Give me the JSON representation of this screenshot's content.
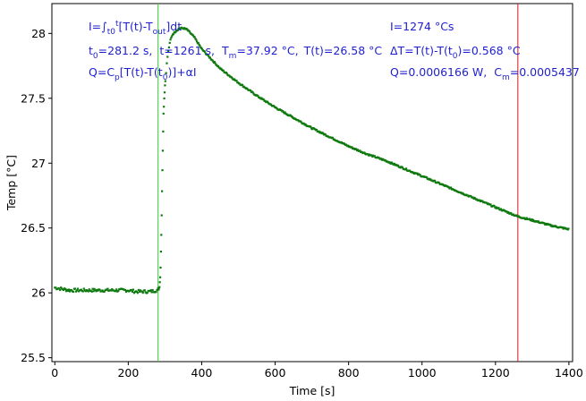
{
  "chart_data": {
    "type": "scatter",
    "title": "",
    "xlabel": "Time [s]",
    "ylabel": "Temp [°C]",
    "xlim": [
      -8,
      1410
    ],
    "ylim": [
      25.47,
      28.23
    ],
    "x_ticks": [
      0,
      200,
      400,
      600,
      800,
      1000,
      1200,
      1400
    ],
    "y_ticks": [
      25.5,
      26,
      26.5,
      27,
      27.5,
      28
    ],
    "x_tick_labels": [
      "0",
      "200",
      "400",
      "600",
      "800",
      "1000",
      "1200",
      "1400"
    ],
    "y_tick_labels": [
      "25.5",
      "26",
      "26.5",
      "27",
      "27.5",
      "28"
    ],
    "grid": false,
    "series": [
      {
        "color": "#0f7a0f",
        "baseline_region": {
          "x_range": [
            0,
            281
          ],
          "y": 26.02
        },
        "points": [
          [
            0,
            26.04
          ],
          [
            20,
            26.03
          ],
          [
            40,
            26.02
          ],
          [
            60,
            26.02
          ],
          [
            80,
            26.02
          ],
          [
            100,
            26.02
          ],
          [
            120,
            26.02
          ],
          [
            140,
            26.02
          ],
          [
            160,
            26.02
          ],
          [
            180,
            26.02
          ],
          [
            200,
            26.02
          ],
          [
            220,
            26.01
          ],
          [
            240,
            26.01
          ],
          [
            260,
            26.01
          ],
          [
            278,
            26.02
          ],
          [
            283,
            26.03
          ],
          [
            285,
            26.05
          ],
          [
            287,
            26.12
          ],
          [
            288,
            26.2
          ],
          [
            289,
            26.32
          ],
          [
            290,
            26.45
          ],
          [
            291,
            26.6
          ],
          [
            292,
            26.78
          ],
          [
            293,
            26.95
          ],
          [
            294,
            27.1
          ],
          [
            295,
            27.25
          ],
          [
            296,
            27.38
          ],
          [
            298,
            27.5
          ],
          [
            300,
            27.6
          ],
          [
            303,
            27.7
          ],
          [
            306,
            27.8
          ],
          [
            310,
            27.88
          ],
          [
            315,
            27.95
          ],
          [
            320,
            27.99
          ],
          [
            330,
            28.02
          ],
          [
            340,
            28.04
          ],
          [
            350,
            28.04
          ],
          [
            360,
            28.03
          ],
          [
            370,
            28.0
          ],
          [
            380,
            27.97
          ],
          [
            400,
            27.88
          ],
          [
            450,
            27.73
          ],
          [
            500,
            27.62
          ],
          [
            550,
            27.52
          ],
          [
            600,
            27.43
          ],
          [
            650,
            27.35
          ],
          [
            700,
            27.27
          ],
          [
            750,
            27.2
          ],
          [
            800,
            27.13
          ],
          [
            850,
            27.07
          ],
          [
            900,
            27.02
          ],
          [
            950,
            26.96
          ],
          [
            1000,
            26.9
          ],
          [
            1050,
            26.84
          ],
          [
            1100,
            26.78
          ],
          [
            1150,
            26.72
          ],
          [
            1200,
            26.66
          ],
          [
            1260,
            26.59
          ],
          [
            1300,
            26.56
          ],
          [
            1350,
            26.52
          ],
          [
            1400,
            26.49
          ]
        ]
      }
    ],
    "vertical_lines": [
      {
        "x": 281.2,
        "color": "#2ecc2e"
      },
      {
        "x": 1261,
        "color": "#d11a1a"
      }
    ],
    "annotations": {
      "line1_left": {
        "base": "I=∫",
        "sub1": "t0",
        "sup1": "t",
        "rest": "[T(t)-T",
        "sub2": "out",
        "end": "]dt"
      },
      "line2_left": {
        "t0_label": "t",
        "t0_sub": "0",
        "t0_val": "=281.2 s,",
        "t_label": "t=1261 s,",
        "tm_label": "T",
        "tm_sub": "m",
        "tm_val": "=37.92 °C,",
        "tt": "T(t)=26.58 °C"
      },
      "line3_left": {
        "a": "Q=C",
        "a_sub": "p",
        "b": "[T(t)-T(t",
        "b_sub": "0",
        "c": ")]+αI"
      },
      "line1_right": "I=1274 °Cs",
      "line2_right": {
        "a": "ΔT=T(t)-T(t",
        "a_sub": "0",
        "b": ")=0.568 °C"
      },
      "line3_right": {
        "a": "Q=0.0006166 W,",
        "b": "C",
        "b_sub": "m",
        "c": "=0.0005437"
      }
    }
  }
}
